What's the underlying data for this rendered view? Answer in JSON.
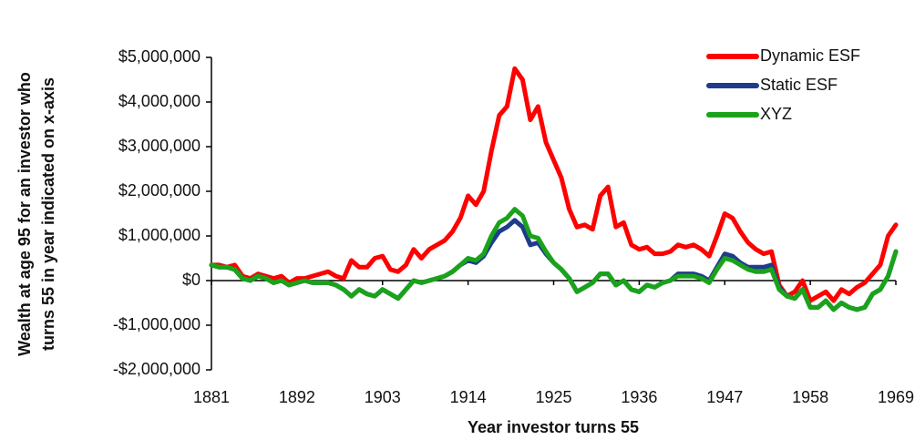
{
  "chart_data": {
    "type": "line",
    "ylabel": [
      "Wealth at age 95 for an investor who",
      "turns 55 in year indicated on x-axis"
    ],
    "xlabel": "Year investor turns 55",
    "x": [
      1881,
      1882,
      1883,
      1884,
      1885,
      1886,
      1887,
      1888,
      1889,
      1890,
      1891,
      1892,
      1893,
      1894,
      1895,
      1896,
      1897,
      1898,
      1899,
      1900,
      1901,
      1902,
      1903,
      1904,
      1905,
      1906,
      1907,
      1908,
      1909,
      1910,
      1911,
      1912,
      1913,
      1914,
      1915,
      1916,
      1917,
      1918,
      1919,
      1920,
      1921,
      1922,
      1923,
      1924,
      1925,
      1926,
      1927,
      1928,
      1929,
      1930,
      1931,
      1932,
      1933,
      1934,
      1935,
      1936,
      1937,
      1938,
      1939,
      1940,
      1941,
      1942,
      1943,
      1944,
      1945,
      1946,
      1947,
      1948,
      1949,
      1950,
      1951,
      1952,
      1953,
      1954,
      1955,
      1956,
      1957,
      1958,
      1959,
      1960,
      1961,
      1962,
      1963,
      1964,
      1965,
      1966,
      1967,
      1968,
      1969
    ],
    "series": [
      {
        "name": "Dynamic ESF",
        "color": "#ff0000",
        "values": [
          350000,
          350000,
          300000,
          350000,
          100000,
          50000,
          150000,
          100000,
          50000,
          100000,
          -50000,
          50000,
          50000,
          100000,
          150000,
          200000,
          100000,
          50000,
          450000,
          300000,
          300000,
          500000,
          550000,
          250000,
          200000,
          350000,
          700000,
          500000,
          700000,
          800000,
          900000,
          1100000,
          1400000,
          1900000,
          1700000,
          2000000,
          2900000,
          3700000,
          3900000,
          4750000,
          4500000,
          3600000,
          3900000,
          3100000,
          2700000,
          2300000,
          1600000,
          1200000,
          1250000,
          1150000,
          1900000,
          2100000,
          1200000,
          1300000,
          800000,
          700000,
          750000,
          600000,
          600000,
          650000,
          800000,
          750000,
          800000,
          700000,
          550000,
          1000000,
          1500000,
          1400000,
          1100000,
          850000,
          700000,
          600000,
          650000,
          -100000,
          -350000,
          -250000,
          0,
          -450000,
          -350000,
          -250000,
          -450000,
          -200000,
          -300000,
          -150000,
          -50000,
          150000,
          350000,
          1000000,
          1250000
        ]
      },
      {
        "name": "Static ESF",
        "color": "#1f3c8c",
        "values": [
          350000,
          300000,
          300000,
          250000,
          50000,
          0,
          100000,
          50000,
          -50000,
          0,
          -100000,
          -50000,
          0,
          -50000,
          -50000,
          -50000,
          -100000,
          -200000,
          -350000,
          -200000,
          -300000,
          -350000,
          -200000,
          -300000,
          -400000,
          -200000,
          0,
          -50000,
          0,
          50000,
          100000,
          200000,
          350000,
          450000,
          400000,
          550000,
          850000,
          1100000,
          1200000,
          1350000,
          1200000,
          800000,
          850000,
          600000,
          400000,
          250000,
          50000,
          -250000,
          -150000,
          -50000,
          150000,
          150000,
          -100000,
          0,
          -200000,
          -250000,
          -100000,
          -150000,
          -50000,
          0,
          150000,
          150000,
          150000,
          100000,
          0,
          300000,
          600000,
          550000,
          400000,
          300000,
          300000,
          300000,
          350000,
          -150000,
          -350000,
          -400000,
          -200000,
          -600000,
          -600000,
          -450000,
          -650000,
          -500000,
          -600000,
          -650000,
          -600000,
          -300000,
          -200000,
          100000,
          650000
        ]
      },
      {
        "name": "XYZ",
        "color": "#1aa31a",
        "values": [
          350000,
          300000,
          300000,
          250000,
          50000,
          0,
          100000,
          50000,
          -50000,
          0,
          -100000,
          -50000,
          0,
          -50000,
          -50000,
          -50000,
          -100000,
          -200000,
          -350000,
          -200000,
          -300000,
          -350000,
          -200000,
          -300000,
          -400000,
          -200000,
          0,
          -50000,
          0,
          50000,
          100000,
          200000,
          350000,
          500000,
          450000,
          600000,
          1000000,
          1300000,
          1400000,
          1600000,
          1450000,
          1000000,
          950000,
          650000,
          400000,
          250000,
          50000,
          -250000,
          -150000,
          -50000,
          150000,
          150000,
          -100000,
          0,
          -200000,
          -250000,
          -100000,
          -150000,
          -50000,
          0,
          100000,
          100000,
          100000,
          50000,
          -50000,
          250000,
          500000,
          450000,
          350000,
          250000,
          200000,
          200000,
          250000,
          -200000,
          -350000,
          -400000,
          -200000,
          -600000,
          -600000,
          -450000,
          -650000,
          -500000,
          -600000,
          -650000,
          -600000,
          -300000,
          -200000,
          100000,
          650000
        ]
      }
    ],
    "xlim": [
      1881,
      1969
    ],
    "xticks": [
      1881,
      1892,
      1903,
      1914,
      1925,
      1936,
      1947,
      1958,
      1969
    ],
    "ylim": [
      -2000000,
      5000000
    ],
    "yticks": [
      {
        "value": -2000000,
        "label": "-$2,000,000"
      },
      {
        "value": -1000000,
        "label": "-$1,000,000"
      },
      {
        "value": 0,
        "label": "$0"
      },
      {
        "value": 1000000,
        "label": "$1,000,000"
      },
      {
        "value": 2000000,
        "label": "$2,000,000"
      },
      {
        "value": 3000000,
        "label": "$3,000,000"
      },
      {
        "value": 4000000,
        "label": "$4,000,000"
      },
      {
        "value": 5000000,
        "label": "$5,000,000"
      }
    ],
    "grid": false,
    "legend": "top-right"
  }
}
